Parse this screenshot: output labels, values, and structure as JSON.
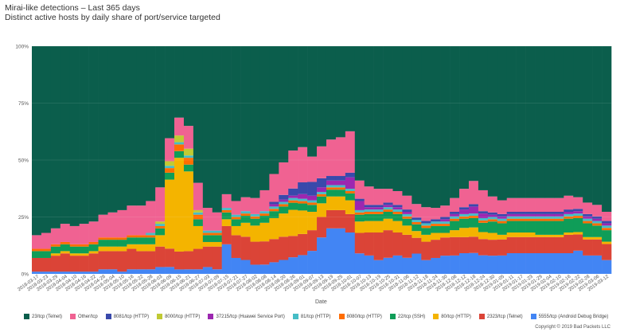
{
  "title": "Mirai-like detections – Last 365 days",
  "subtitle": "Distinct active hosts by daily share of port/service targeted",
  "copyright": "Copyright © 2019 Bad Packets LLC",
  "chart_data": {
    "type": "bar",
    "stacked": true,
    "title": "Mirai-like detections – Last 365 days",
    "subtitle": "Distinct active hosts by daily share of port/service targeted",
    "xlabel": "Date",
    "ylabel": "",
    "ylim": [
      0,
      100
    ],
    "yticks": [
      "0%",
      "25%",
      "50%",
      "75%",
      "100%"
    ],
    "legend_position": "bottom",
    "categories": [
      "2018-03-17",
      "2018-03-23",
      "2018-03-29",
      "2018-04-04",
      "2018-04-10",
      "2018-04-16",
      "2018-04-22",
      "2018-04-28",
      "2018-05-04",
      "2018-05-10",
      "2018-05-16",
      "2018-05-22",
      "2018-05-28",
      "2018-06-03",
      "2018-06-09",
      "2018-06-15",
      "2018-06-21",
      "2018-06-27",
      "2018-07-03",
      "2018-07-09",
      "2018-07-15",
      "2018-07-21",
      "2018-07-27",
      "2018-08-02",
      "2018-08-08",
      "2018-08-14",
      "2018-08-20",
      "2018-08-26",
      "2018-09-01",
      "2018-09-07",
      "2018-09-13",
      "2018-09-19",
      "2018-09-25",
      "2018-10-01",
      "2018-10-07",
      "2018-10-13",
      "2018-10-19",
      "2018-10-25",
      "2018-10-31",
      "2018-11-06",
      "2018-11-12",
      "2018-11-18",
      "2018-11-24",
      "2018-11-30",
      "2018-12-06",
      "2018-12-12",
      "2018-12-18",
      "2018-12-24",
      "2018-12-30",
      "2019-01-05",
      "2019-01-11",
      "2019-01-17",
      "2019-01-23",
      "2019-01-29",
      "2019-02-04",
      "2019-02-10",
      "2019-02-16",
      "2019-02-22",
      "2019-02-28",
      "2019-03-06",
      "2019-03-12"
    ],
    "series": [
      {
        "name": "5555/tcp (Android Debug Bridge)",
        "color": "#4285f4",
        "values": [
          1,
          1,
          1,
          1,
          1,
          1,
          1,
          2,
          2,
          1,
          2,
          2,
          2,
          3,
          3,
          2,
          2,
          2,
          3,
          2,
          13,
          7,
          6,
          4,
          4,
          5,
          6,
          7,
          8,
          10,
          16,
          20,
          20,
          18,
          9,
          8,
          6,
          7,
          8,
          7,
          9,
          6,
          7,
          8,
          8,
          9,
          9,
          8,
          8,
          8,
          9,
          9,
          9,
          9,
          9,
          9,
          9,
          10,
          8,
          8,
          6
        ]
      },
      {
        "name": "2323/tcp (Telnet)",
        "color": "#db4437",
        "values": [
          6,
          6,
          7,
          8,
          7,
          7,
          8,
          8,
          8,
          9,
          9,
          8,
          8,
          9,
          8,
          8,
          8,
          9,
          9,
          10,
          8,
          10,
          10,
          10,
          10,
          10,
          10,
          9,
          9,
          9,
          9,
          8,
          8,
          8,
          9,
          10,
          12,
          12,
          10,
          10,
          7,
          8,
          8,
          8,
          8,
          7,
          7,
          7,
          7,
          7,
          7,
          7,
          7,
          7,
          7,
          7,
          8,
          7,
          7,
          7,
          7
        ]
      },
      {
        "name": "80/tcp (HTTP)",
        "color": "#f4b400",
        "values": [
          0,
          0,
          1,
          1,
          1,
          1,
          1,
          2,
          2,
          2,
          2,
          3,
          3,
          5,
          30,
          42,
          35,
          10,
          2,
          2,
          3,
          4,
          6,
          7,
          8,
          9,
          10,
          11,
          10,
          8,
          6,
          6,
          6,
          6,
          5,
          5,
          5,
          5,
          5,
          4,
          3,
          3,
          3,
          2,
          3,
          4,
          4,
          3,
          3,
          2,
          2,
          2,
          2,
          1,
          1,
          1,
          1,
          1,
          1,
          1,
          1
        ]
      },
      {
        "name": "22/tcp (SSH)",
        "color": "#0f9d58",
        "values": [
          3,
          3,
          3,
          3,
          3,
          3,
          3,
          3,
          3,
          3,
          3,
          3,
          3,
          3,
          3,
          3,
          3,
          3,
          3,
          3,
          3,
          3,
          3,
          3,
          3,
          3,
          3,
          3,
          3,
          3,
          3,
          3,
          3,
          3,
          3,
          3,
          3,
          3,
          3,
          3,
          3,
          3,
          3,
          3,
          4,
          4,
          4,
          4,
          5,
          5,
          5,
          5,
          5,
          6,
          6,
          6,
          6,
          6,
          6,
          5,
          5
        ]
      },
      {
        "name": "8080/tcp (HTTP)",
        "color": "#ff6d00",
        "values": [
          1,
          1,
          1,
          1,
          1,
          1,
          1,
          1,
          1,
          1,
          1,
          1,
          1,
          1,
          2,
          3,
          3,
          2,
          1,
          1,
          1,
          1,
          1,
          1,
          1,
          1,
          1,
          1,
          1,
          1,
          1,
          1,
          1,
          1,
          1,
          1,
          1,
          1,
          1,
          1,
          1,
          1,
          1,
          1,
          1,
          1,
          1,
          1,
          1,
          1,
          1,
          1,
          1,
          1,
          1,
          1,
          1,
          1,
          1,
          1,
          1
        ]
      },
      {
        "name": "81/tcp (HTTP)",
        "color": "#46bdc6",
        "values": [
          0,
          0,
          0,
          0,
          0,
          0,
          0,
          0,
          0,
          0,
          0,
          0,
          1,
          1,
          1,
          1,
          1,
          1,
          1,
          1,
          1,
          1,
          1,
          1,
          1,
          1,
          1,
          1,
          1,
          1,
          1,
          1,
          1,
          1,
          1,
          1,
          1,
          1,
          1,
          1,
          1,
          1,
          1,
          1,
          1,
          1,
          1,
          1,
          1,
          1,
          1,
          1,
          1,
          1,
          1,
          1,
          1,
          1,
          1,
          1,
          1
        ]
      },
      {
        "name": "37215/tcp (Huawei Service Port)",
        "color": "#9c27b0",
        "values": [
          0,
          0,
          0,
          0,
          0,
          0,
          0,
          0,
          0,
          0,
          0,
          0,
          0,
          0,
          0,
          0,
          0,
          0,
          0,
          0,
          0,
          0,
          0,
          0,
          0,
          1,
          1,
          1,
          2,
          2,
          2,
          2,
          2,
          5,
          4,
          1,
          1,
          1,
          1,
          1,
          0,
          0,
          0,
          1,
          1,
          2,
          3,
          2,
          1,
          1,
          1,
          1,
          1,
          1,
          1,
          1,
          1,
          1,
          1,
          1,
          1
        ]
      },
      {
        "name": "8000/tcp (HTTP)",
        "color": "#c0ca33",
        "values": [
          0,
          0,
          0,
          0,
          0,
          0,
          0,
          0,
          0,
          0,
          0,
          0,
          0,
          1,
          2,
          3,
          3,
          1,
          0,
          0,
          0,
          0,
          0,
          0,
          0,
          0,
          0,
          0,
          0,
          0,
          0,
          0,
          0,
          0,
          0,
          0,
          0,
          0,
          0,
          0,
          0,
          0,
          0,
          0,
          0,
          0,
          0,
          0,
          0,
          0,
          0,
          0,
          0,
          0,
          0,
          0,
          0,
          0,
          0,
          0,
          0
        ]
      },
      {
        "name": "8081/tcp (HTTP)",
        "color": "#3949ab",
        "values": [
          0,
          0,
          0,
          0,
          0,
          0,
          0,
          0,
          0,
          0,
          0,
          0,
          0,
          0,
          0,
          0,
          0,
          0,
          0,
          0,
          0,
          0,
          0,
          0,
          0,
          1,
          2,
          3,
          5,
          6,
          4,
          2,
          2,
          2,
          1,
          1,
          1,
          1,
          1,
          1,
          1,
          1,
          1,
          1,
          1,
          1,
          1,
          1,
          1,
          1,
          1,
          1,
          1,
          1,
          1,
          1,
          1,
          1,
          1,
          1,
          1
        ]
      },
      {
        "name": "Other/tcp",
        "color": "#f06292",
        "values": [
          6,
          7,
          7,
          8,
          8,
          9,
          9,
          10,
          11,
          12,
          13,
          13,
          14,
          15,
          10,
          8,
          10,
          12,
          10,
          8,
          6,
          6,
          6,
          7,
          9,
          12,
          14,
          16,
          15,
          11,
          14,
          16,
          17,
          18,
          8,
          8,
          7,
          6,
          6,
          6,
          6,
          6,
          5,
          5,
          6,
          8,
          10,
          9,
          7,
          6,
          6,
          6,
          6,
          6,
          6,
          6,
          6,
          5,
          5,
          5,
          4
        ]
      },
      {
        "name": "23/tcp (Telnet)",
        "color": "#0b5e4c",
        "values": [
          83,
          82,
          80,
          78,
          79,
          78,
          77,
          74,
          73,
          72,
          70,
          70,
          68,
          62,
          40,
          32,
          35,
          60,
          71,
          73,
          65,
          68,
          65,
          66,
          62,
          55,
          50,
          44,
          43,
          48,
          44,
          41,
          40,
          37,
          59,
          61,
          62,
          62,
          63,
          65,
          70,
          70,
          71,
          70,
          66,
          62,
          58,
          62,
          66,
          67,
          66,
          66,
          66,
          66,
          66,
          66,
          65,
          65,
          68,
          69,
          72
        ]
      }
    ]
  }
}
